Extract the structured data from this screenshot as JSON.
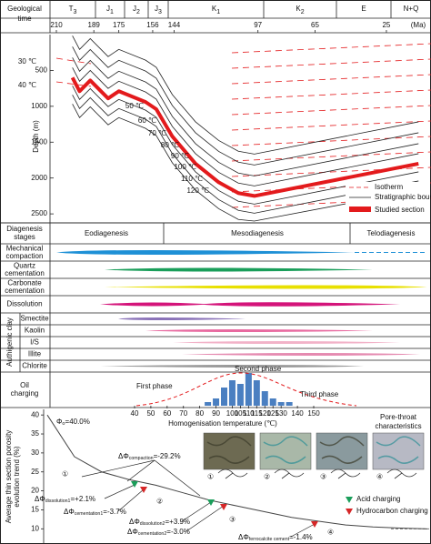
{
  "header": {
    "geological_time_label": [
      "Geological",
      "time"
    ],
    "periods": [
      {
        "name": "T",
        "sub": "3"
      },
      {
        "name": "J",
        "sub": "1"
      },
      {
        "name": "J",
        "sub": "2"
      },
      {
        "name": "J",
        "sub": "3"
      },
      {
        "name": "K",
        "sub": "1"
      },
      {
        "name": "K",
        "sub": "2"
      },
      {
        "name": "E",
        "sub": ""
      },
      {
        "name": "N+Q",
        "sub": ""
      }
    ],
    "ages": [
      210,
      189,
      175,
      156,
      144,
      97,
      65,
      25
    ],
    "age_unit": "(Ma)"
  },
  "burial": {
    "depth_label": "Depth (m)",
    "xlim": [
      210,
      0
    ],
    "ylim": [
      0,
      2600
    ],
    "yticks": [
      500,
      1000,
      1500,
      2000,
      2500
    ],
    "studied_section": {
      "x": [
        201,
        197,
        191,
        181,
        175,
        160,
        154,
        145,
        132,
        119,
        108,
        99,
        7
      ],
      "y": [
        600,
        790,
        640,
        890,
        790,
        940,
        1040,
        1420,
        1800,
        2060,
        2210,
        2250,
        1800
      ],
      "color": "#e31a1c"
    },
    "isotherms": [
      "30 ℃",
      "40 ℃",
      "50 ℃",
      "60 ℃",
      "70 ℃",
      "80 ℃",
      "90 ℃",
      "100 ℃",
      "110 ℃",
      "120 ℃"
    ],
    "legend": [
      "Isotherm",
      "Stratigraphic boundry",
      "Studied section"
    ]
  },
  "diagenesis": {
    "stages_label": [
      "Diagenesis",
      "stages"
    ],
    "stages": [
      "Eodiagenesis",
      "Mesodiagenesis",
      "Telodiagenesis"
    ],
    "processes": [
      [
        "Mechanical",
        "compaction"
      ],
      [
        "Quartz",
        "cementation"
      ],
      [
        "Carbonate",
        "cementation"
      ],
      [
        "Dissolution"
      ]
    ],
    "clay_label": "Authigenic clay",
    "clays": [
      "Smectite",
      "Kaolin",
      "I/S",
      "Illite",
      "Chlorite"
    ],
    "oil_label": [
      "Oil",
      "charging"
    ]
  },
  "homogenisation": {
    "type": "bar",
    "x": [
      85,
      90,
      95,
      100,
      105,
      110,
      115,
      120,
      125,
      130,
      135
    ],
    "values": [
      1,
      2,
      5,
      7,
      6,
      9,
      7,
      4,
      2,
      1,
      1
    ],
    "color": "#4a7fc1",
    "xlim": [
      40,
      150
    ],
    "xticks": [
      40,
      50,
      60,
      70,
      80,
      90,
      100,
      105,
      110,
      115,
      120,
      125,
      130,
      140,
      150
    ],
    "xlabel": "Homogenisation temperature (℃)",
    "phases": [
      "First phase",
      "Second phase",
      "Third phase"
    ]
  },
  "porosity": {
    "type": "line",
    "ylabel": [
      "Average thin section porosity",
      "evolution trend (%)"
    ],
    "ylim": [
      6,
      41
    ],
    "yticks": [
      10,
      15,
      20,
      25,
      30,
      35,
      40
    ],
    "values": [
      40,
      29,
      25,
      23,
      21.5,
      19.5,
      17.5,
      16,
      14.5,
      13,
      12,
      11,
      10.5,
      10.2,
      10
    ],
    "annotations": [
      {
        "symbol": "Φ",
        "sub": "o",
        "text": "=40.0%"
      },
      {
        "symbol": "ΔΦ",
        "sub": "compaction",
        "text": "=-29.2%"
      },
      {
        "symbol": "ΔΦ",
        "sub": "dissolution1",
        "text": "=+2.1%"
      },
      {
        "symbol": "ΔΦ",
        "sub": "cementation1",
        "text": "=-3.7%"
      },
      {
        "symbol": "ΔΦ",
        "sub": "dissolution2",
        "text": "=+3.9%"
      },
      {
        "symbol": "ΔΦ",
        "sub": "cementation2",
        "text": "=-3.0%"
      },
      {
        "symbol": "ΔΦ",
        "sub": "ferrocalcite cement",
        "text": "=-1.4%"
      }
    ],
    "stage_markers": [
      "①",
      "②",
      "③",
      "④"
    ],
    "pore_throat_title": [
      "Pore-throat",
      "characteristics"
    ],
    "photo_labels": [
      "①",
      "②",
      "③",
      "④"
    ],
    "legend": [
      "Acid charging",
      "Hydrocarbon charging"
    ]
  }
}
